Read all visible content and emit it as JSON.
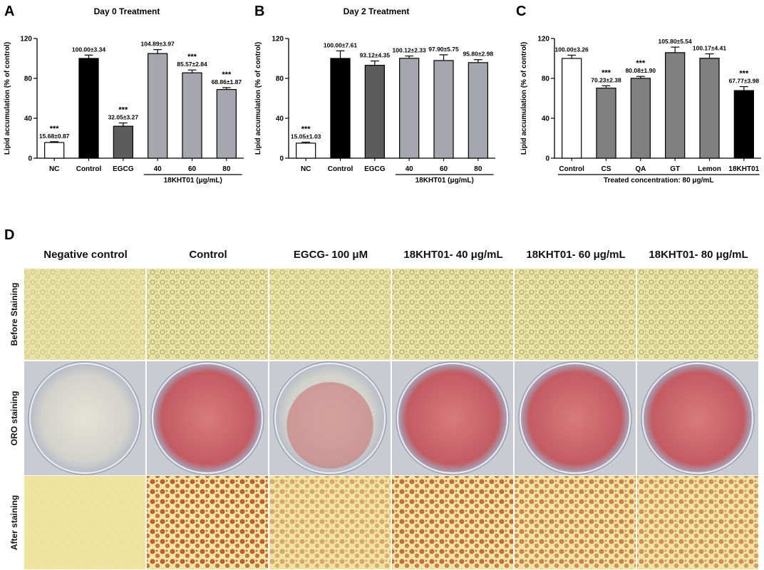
{
  "panels": {
    "a": "A",
    "b": "B",
    "c": "C",
    "d": "D"
  },
  "colors": {
    "white": "#ffffff",
    "black": "#000000",
    "dark_gray": "#5c5c5c",
    "light_gray": "#a6a6ae",
    "mid_gray": "#808080"
  },
  "chart_data": [
    {
      "type": "bar",
      "title": "Day 0 Treatment",
      "ylabel": "Lipid accumulation (% of control)",
      "xlabel": "",
      "ylim": [
        0,
        120
      ],
      "yticks": [
        0,
        40,
        80,
        120
      ],
      "categories": [
        "NC",
        "Control",
        "EGCG",
        "40",
        "60",
        "80"
      ],
      "values": [
        15.68,
        100.0,
        32.05,
        104.89,
        85.57,
        68.86
      ],
      "errors": [
        0.87,
        3.34,
        3.27,
        3.97,
        2.84,
        1.87
      ],
      "value_labels": [
        "15.68±0.87",
        "100.00±3.34",
        "32.05±3.27",
        "104.89±3.97",
        "85.57±2.84",
        "68.86±1.87"
      ],
      "significance": [
        "***",
        "",
        "***",
        "",
        "***",
        "***"
      ],
      "bar_colors": [
        "#ffffff",
        "#000000",
        "#5c5c5c",
        "#a6a6ae",
        "#a6a6ae",
        "#a6a6ae"
      ],
      "group_label": "18KHT01 (μg/mL)",
      "group_span": [
        3,
        5
      ]
    },
    {
      "type": "bar",
      "title": "Day 2 Treatment",
      "ylabel": "Lipid accumulation (% of control)",
      "xlabel": "",
      "ylim": [
        0,
        120
      ],
      "yticks": [
        0,
        40,
        80,
        120
      ],
      "categories": [
        "NC",
        "Control",
        "EGCG",
        "40",
        "60",
        "80"
      ],
      "values": [
        15.05,
        100.0,
        93.12,
        100.12,
        97.9,
        95.8
      ],
      "errors": [
        1.03,
        7.61,
        4.35,
        2.33,
        5.75,
        2.98
      ],
      "value_labels": [
        "15.05±1.03",
        "100.00±7.61",
        "93.12±4.35",
        "100.12±2.33",
        "97.90±5.75",
        "95.80±2.98"
      ],
      "significance": [
        "***",
        "",
        "",
        "",
        "",
        ""
      ],
      "bar_colors": [
        "#ffffff",
        "#000000",
        "#5c5c5c",
        "#a6a6ae",
        "#a6a6ae",
        "#a6a6ae"
      ],
      "group_label": "18KHT01 (μg/mL)",
      "group_span": [
        3,
        5
      ]
    },
    {
      "type": "bar",
      "title": "",
      "ylabel": "Lipid accumulation (% of control)",
      "xlabel": "",
      "ylim": [
        0,
        120
      ],
      "yticks": [
        0,
        40,
        80,
        120
      ],
      "categories": [
        "Control",
        "CS",
        "QA",
        "GT",
        "Lemon",
        "18KHT01"
      ],
      "values": [
        100.0,
        70.23,
        80.08,
        105.8,
        100.17,
        67.77
      ],
      "errors": [
        3.26,
        2.38,
        1.9,
        5.54,
        4.41,
        3.98
      ],
      "value_labels": [
        "100.00±3.26",
        "70.23±2.38",
        "80.08±1.90",
        "105.80±5.54",
        "100.17±4.41",
        "67.77±3.98"
      ],
      "significance": [
        "",
        "***",
        "***",
        "",
        "",
        "***"
      ],
      "bar_colors": [
        "#ffffff",
        "#808080",
        "#808080",
        "#808080",
        "#808080",
        "#000000"
      ],
      "group_label": "Treated concentration: 80 μg/mL",
      "group_span": [
        0,
        5
      ]
    }
  ],
  "micrographs": {
    "columns": [
      "Negative control",
      "Control",
      "EGCG- 100 μM",
      "18KHT01- 40 μg/mL",
      "18KHT01- 60 μg/mL",
      "18KHT01- 80 μg/mL"
    ],
    "rows": [
      "Before Staining",
      "ORO staining",
      "After staining"
    ],
    "stain_level": [
      0.02,
      0.95,
      0.45,
      0.85,
      0.7,
      0.6
    ]
  }
}
